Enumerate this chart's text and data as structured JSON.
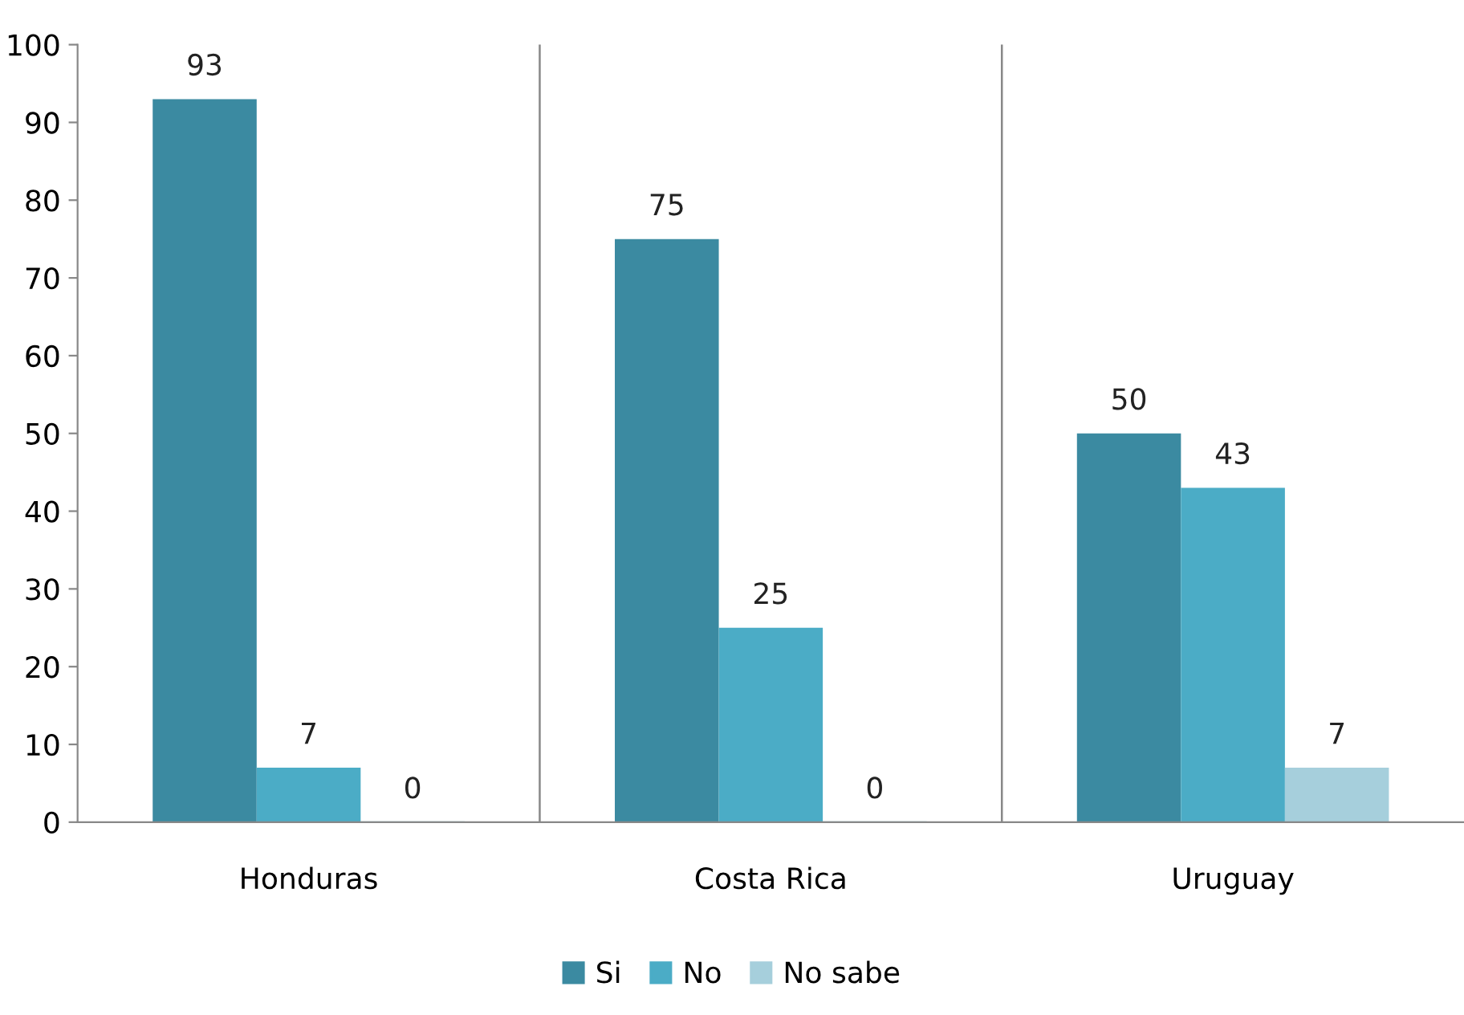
{
  "chart_data": {
    "type": "bar",
    "categories": [
      "Honduras",
      "Costa Rica",
      "Uruguay"
    ],
    "series": [
      {
        "name": "Si",
        "color": "#3b8aa1",
        "values": [
          93,
          75,
          50
        ]
      },
      {
        "name": "No",
        "color": "#4bacc6",
        "values": [
          7,
          25,
          43
        ]
      },
      {
        "name": "No sabe",
        "color": "#a6cfdc",
        "values": [
          0,
          0,
          7
        ]
      }
    ],
    "ylim": [
      0,
      100
    ],
    "yticks": [
      0,
      10,
      20,
      30,
      40,
      50,
      60,
      70,
      80,
      90,
      100
    ],
    "grid": "x",
    "legend": "bottom",
    "data_labels": true
  }
}
